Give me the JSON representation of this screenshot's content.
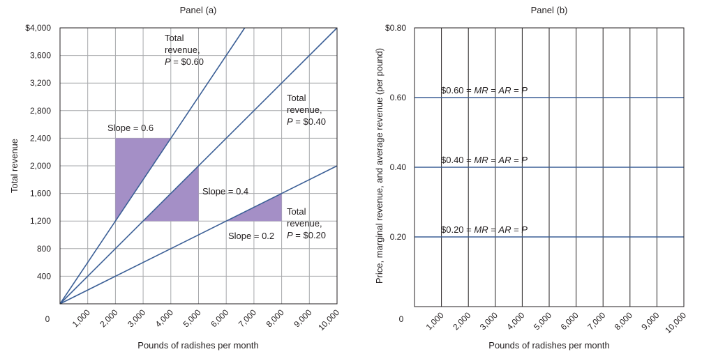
{
  "chart_data": [
    {
      "type": "line",
      "title": "Panel (a)",
      "xlabel": "Pounds of radishes per month",
      "ylabel": "Total revenue",
      "xlim": [
        0,
        10000
      ],
      "ylim": [
        0,
        4000
      ],
      "x_ticks": [
        0,
        1000,
        2000,
        3000,
        4000,
        5000,
        6000,
        7000,
        8000,
        9000,
        10000
      ],
      "x_tick_labels": [
        "0",
        "1,000",
        "2,000",
        "3,000",
        "4,000",
        "5,000",
        "6,000",
        "7,000",
        "8,000",
        "9,000",
        "10,000"
      ],
      "y_ticks": [
        400,
        800,
        1200,
        1600,
        2000,
        2400,
        2800,
        3200,
        3600,
        4000
      ],
      "y_tick_labels": [
        "400",
        "800",
        "1,200",
        "1,600",
        "2,000",
        "2,400",
        "2,800",
        "3,200",
        "3,600",
        "$4,000"
      ],
      "grid": true,
      "series": [
        {
          "price": 0.6,
          "x": [
            0,
            6667
          ],
          "y": [
            0,
            4000
          ],
          "label_lines": [
            "Total",
            "revenue,",
            "P = $0.60"
          ]
        },
        {
          "price": 0.4,
          "x": [
            0,
            10000
          ],
          "y": [
            0,
            4000
          ],
          "label_lines": [
            "Total",
            "revenue,",
            "P = $0.40"
          ]
        },
        {
          "price": 0.2,
          "x": [
            0,
            10000
          ],
          "y": [
            0,
            2000
          ],
          "label_lines": [
            "Total",
            "revenue,",
            "P = $0.20"
          ]
        }
      ],
      "slope_triangles": [
        {
          "label": "Slope = 0.6",
          "points": [
            [
              2000,
              1200
            ],
            [
              2000,
              2400
            ],
            [
              4000,
              2400
            ]
          ]
        },
        {
          "label": "Slope = 0.4",
          "points": [
            [
              3000,
              1200
            ],
            [
              5000,
              2000
            ],
            [
              5000,
              1200
            ]
          ]
        },
        {
          "label": "Slope = 0.2",
          "points": [
            [
              6000,
              1200
            ],
            [
              8000,
              1600
            ],
            [
              8000,
              1200
            ]
          ]
        }
      ]
    },
    {
      "type": "line",
      "title": "Panel (b)",
      "xlabel": "Pounds of radishes per month",
      "ylabel": "Price, marginal revenue, and average revenue (per pound)",
      "xlim": [
        0,
        10000
      ],
      "ylim": [
        0,
        0.8
      ],
      "x_ticks": [
        0,
        1000,
        2000,
        3000,
        4000,
        5000,
        6000,
        7000,
        8000,
        9000,
        10000
      ],
      "x_tick_labels": [
        "0",
        "1,000",
        "2,000",
        "3,000",
        "4,000",
        "5,000",
        "6,000",
        "7,000",
        "8,000",
        "9,000",
        "10,000"
      ],
      "y_ticks": [
        0.2,
        0.4,
        0.6,
        0.8
      ],
      "y_tick_labels": [
        "0.20",
        "0.40",
        "0.60",
        "$0.80"
      ],
      "series": [
        {
          "y": 0.6,
          "label_parts": [
            "$0.60 = ",
            "MR",
            " = ",
            "AR",
            " = ",
            "P"
          ]
        },
        {
          "y": 0.4,
          "label_parts": [
            "$0.40 = ",
            "MR",
            " = ",
            "AR",
            " = ",
            "P"
          ]
        },
        {
          "y": 0.2,
          "label_parts": [
            "$0.20 = ",
            "MR",
            " = ",
            "AR",
            " = ",
            "P"
          ]
        }
      ]
    }
  ]
}
